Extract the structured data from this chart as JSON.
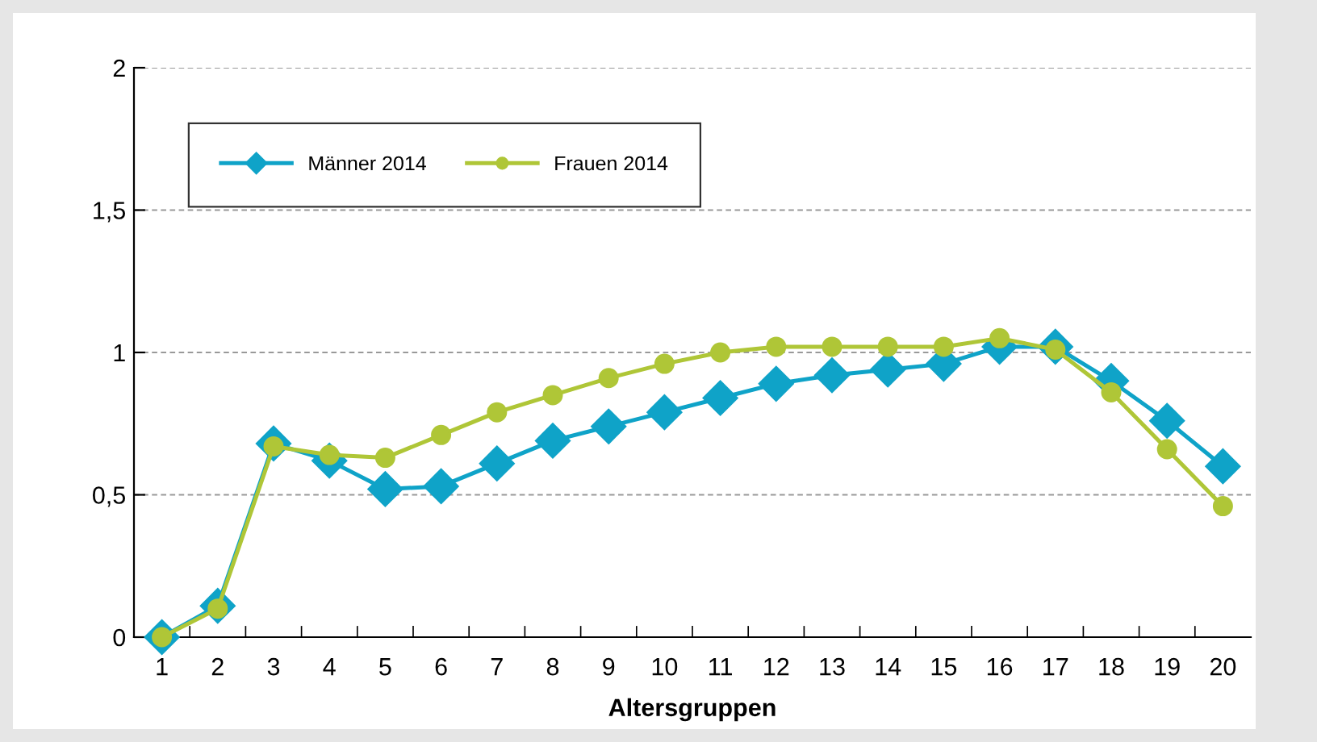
{
  "chart_data": {
    "type": "line",
    "xlabel": "Altersgruppen",
    "categories": [
      "1",
      "2",
      "3",
      "4",
      "5",
      "6",
      "7",
      "8",
      "9",
      "10",
      "11",
      "12",
      "13",
      "14",
      "15",
      "16",
      "17",
      "18",
      "19",
      "20"
    ],
    "series": [
      {
        "name": "Männer 2014",
        "color": "#0fa3c8",
        "marker": "diamond",
        "values": [
          0,
          0.11,
          0.68,
          0.62,
          0.52,
          0.53,
          0.61,
          0.69,
          0.74,
          0.79,
          0.84,
          0.89,
          0.92,
          0.94,
          0.96,
          1.02,
          1.02,
          0.9,
          0.76,
          0.6
        ]
      },
      {
        "name": "Frauen 2014",
        "color": "#afc637",
        "marker": "circle",
        "values": [
          0,
          0.1,
          0.67,
          0.64,
          0.63,
          0.71,
          0.79,
          0.85,
          0.91,
          0.96,
          1.0,
          1.02,
          1.02,
          1.02,
          1.02,
          1.05,
          1.01,
          0.86,
          0.66,
          0.46
        ]
      }
    ],
    "ylim": [
      0,
      2
    ],
    "yticks": [
      0,
      {
        "value": 0.5,
        "label": "0,5"
      },
      1,
      {
        "value": 1.5,
        "label": "1,5"
      },
      2
    ],
    "grid": "y",
    "legend": "top left",
    "line_style": "solid"
  }
}
